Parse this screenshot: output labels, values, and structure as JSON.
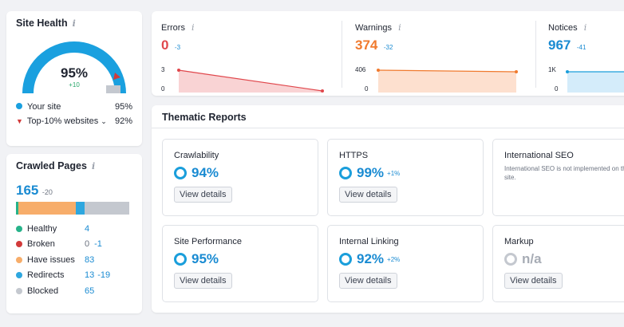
{
  "site_health": {
    "title": "Site Health",
    "score": "95%",
    "delta": "+10",
    "legend": [
      {
        "label": "Your site",
        "value": "95%",
        "color": "#1aa0df"
      },
      {
        "label": "Top-10% websites",
        "value": "92%",
        "color": "#d23a3a"
      }
    ]
  },
  "crawled": {
    "title": "Crawled Pages",
    "total": "165",
    "delta": "-20",
    "rows": [
      {
        "label": "Healthy",
        "value": "4",
        "delta": "",
        "color": "#27b38a"
      },
      {
        "label": "Broken",
        "value": "0",
        "delta": "-1",
        "color": "#d23a3a"
      },
      {
        "label": "Have issues",
        "value": "83",
        "delta": "",
        "color": "#f7ad6a"
      },
      {
        "label": "Redirects",
        "value": "13",
        "delta": "-19",
        "color": "#2ea7df"
      },
      {
        "label": "Blocked",
        "value": "65",
        "delta": "",
        "color": "#c4c8cf"
      }
    ]
  },
  "metrics": {
    "errors": {
      "title": "Errors",
      "value": "0",
      "delta": "-3",
      "ytop": "3",
      "ybottom": "0",
      "color": "#e0474c"
    },
    "warnings": {
      "title": "Warnings",
      "value": "374",
      "delta": "-32",
      "ytop": "406",
      "ybottom": "0",
      "color": "#f07a2e"
    },
    "notices": {
      "title": "Notices",
      "value": "967",
      "delta": "-41",
      "ytop": "1K",
      "ybottom": "0",
      "color": "#1a8bd2"
    }
  },
  "thematic": {
    "title": "Thematic Reports",
    "view_details": "View details",
    "tiles": [
      {
        "title": "Crawlability",
        "value": "94%",
        "delta": ""
      },
      {
        "title": "HTTPS",
        "value": "99%",
        "delta": "+1%"
      },
      {
        "title": "International SEO",
        "note": "International SEO is not implemented on this site."
      },
      {
        "title": "Site Performance",
        "value": "95%",
        "delta": ""
      },
      {
        "title": "Internal Linking",
        "value": "92%",
        "delta": "+2%"
      },
      {
        "title": "Markup",
        "value": "n/a",
        "delta": ""
      }
    ]
  }
}
